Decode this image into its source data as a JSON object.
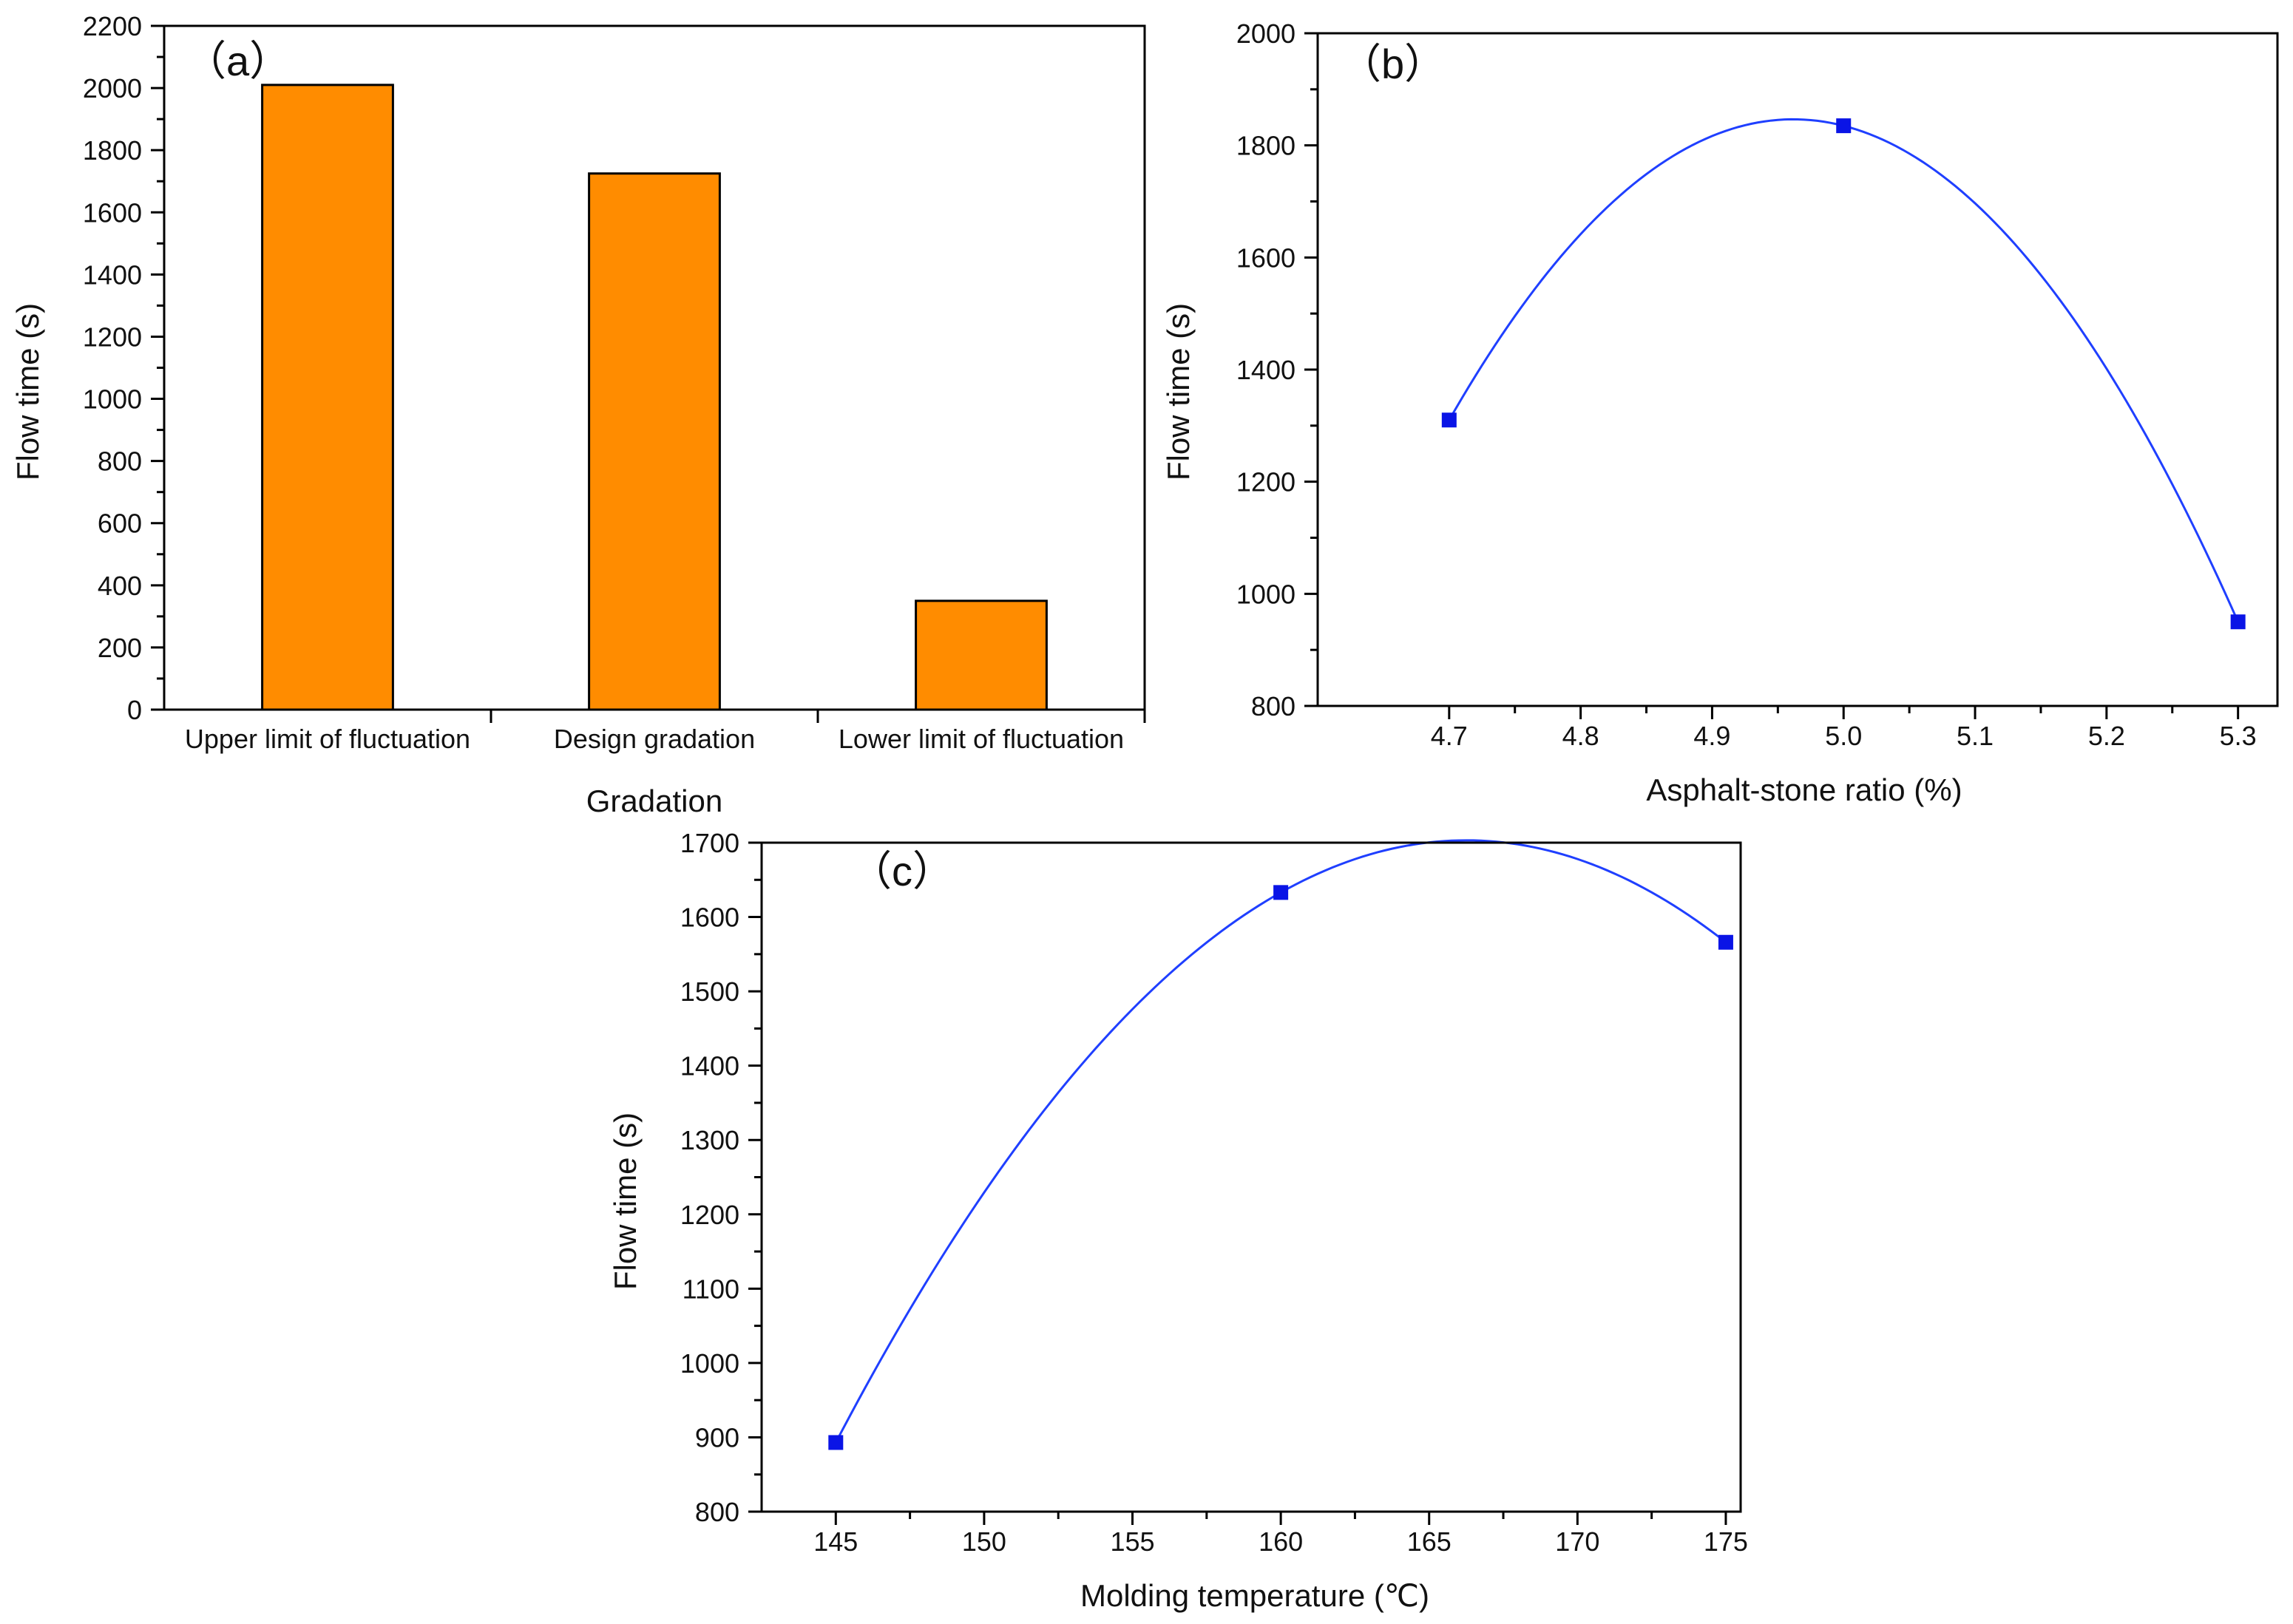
{
  "colors": {
    "bar_fill": "#FF8C00",
    "bar_stroke": "#000000",
    "line": "#1F3FFF",
    "marker": "#0A14E6",
    "axis": "#000000"
  },
  "chart_data": [
    {
      "id": "a",
      "panel_label": "（a）",
      "type": "bar",
      "categories": [
        "Upper limit of fluctuation",
        "Design gradation",
        "Lower limit of fluctuation"
      ],
      "values": [
        2010,
        1725,
        350
      ],
      "title": "",
      "xlabel": "Gradation",
      "ylabel": "Flow time (s)",
      "ylim": [
        0,
        2200
      ],
      "yticks": [
        0,
        200,
        400,
        600,
        800,
        1000,
        1200,
        1400,
        1600,
        1800,
        2000,
        2200
      ],
      "ytick_labels": [
        "0",
        "200",
        "400",
        "600",
        "800",
        "1000",
        "1200",
        "1400",
        "1600",
        "1800",
        "2000",
        "2200"
      ],
      "grid": false
    },
    {
      "id": "b",
      "panel_label": "（b）",
      "type": "line",
      "x": [
        4.7,
        5.0,
        5.3
      ],
      "y": [
        1310,
        1835,
        950
      ],
      "title": "",
      "xlabel": "Asphalt-stone ratio (%)",
      "ylabel": "Flow time (s)",
      "xlim": [
        4.6,
        5.33
      ],
      "ylim": [
        800,
        2000
      ],
      "xticks": [
        4.7,
        4.8,
        4.9,
        5.0,
        5.1,
        5.2,
        5.3
      ],
      "xtick_labels": [
        "4.7",
        "4.8",
        "4.9",
        "5.0",
        "5.1",
        "5.2",
        "5.3"
      ],
      "yticks": [
        800,
        1000,
        1200,
        1400,
        1600,
        1800,
        2000
      ],
      "ytick_labels": [
        "800",
        "1000",
        "1200",
        "1400",
        "1600",
        "1800",
        "2000"
      ],
      "grid": false
    },
    {
      "id": "c",
      "panel_label": "（c）",
      "type": "line",
      "x": [
        145,
        160,
        175
      ],
      "y": [
        893,
        1633,
        1566
      ],
      "title": "",
      "xlabel": "Molding temperature (℃)",
      "ylabel": "Flow time (s)",
      "xlim": [
        142.5,
        175.5
      ],
      "ylim": [
        800,
        1700
      ],
      "xticks": [
        145,
        150,
        155,
        160,
        165,
        170,
        175
      ],
      "xtick_labels": [
        "145",
        "150",
        "155",
        "160",
        "165",
        "170",
        "175"
      ],
      "yticks": [
        800,
        900,
        1000,
        1100,
        1200,
        1300,
        1400,
        1500,
        1600,
        1700
      ],
      "ytick_labels": [
        "800",
        "900",
        "1000",
        "1100",
        "1200",
        "1300",
        "1400",
        "1500",
        "1600",
        "1700"
      ],
      "grid": false
    }
  ]
}
